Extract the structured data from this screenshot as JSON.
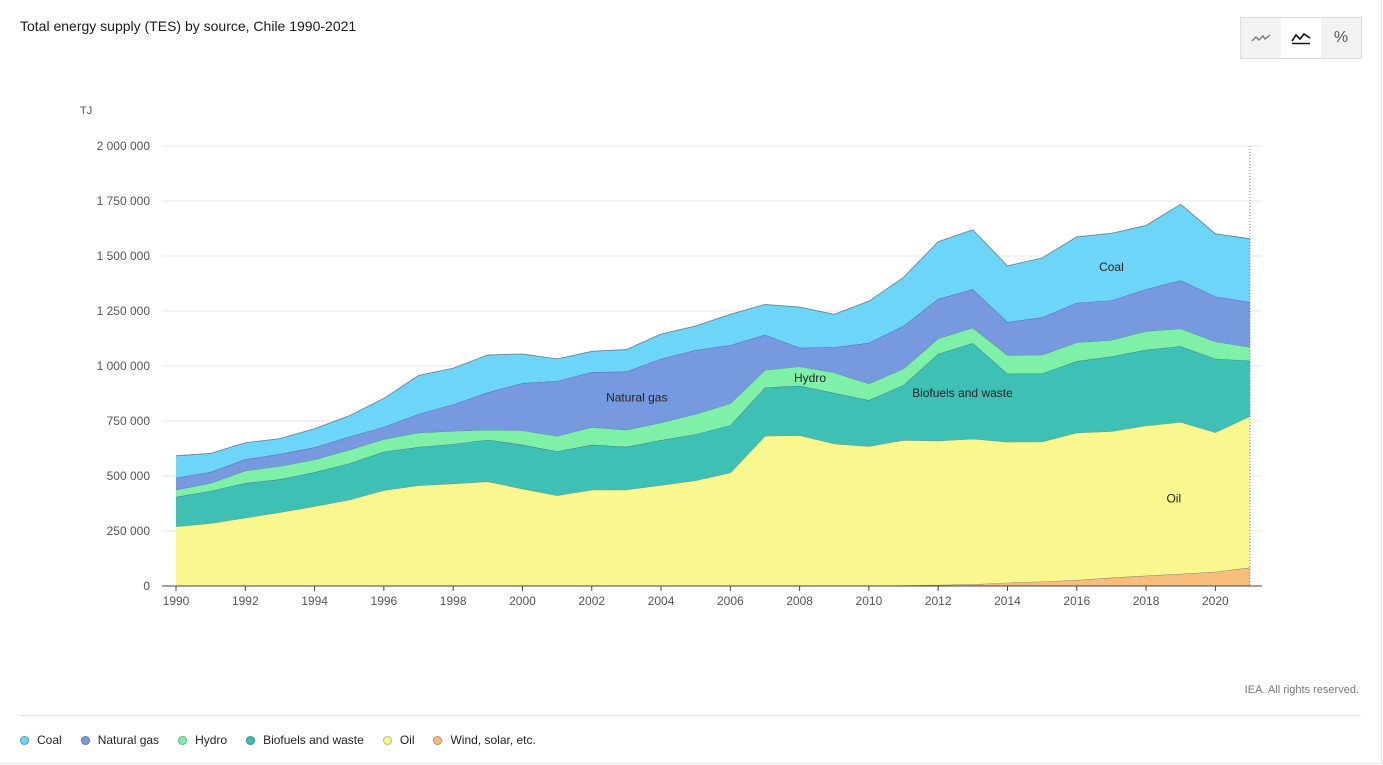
{
  "header": {
    "title": "Total energy supply (TES) by source, Chile 1990-2021"
  },
  "view_toggle": {
    "buttons": [
      {
        "name": "line-chart",
        "icon": "line-chart-icon",
        "active": false
      },
      {
        "name": "area-chart",
        "icon": "area-chart-icon",
        "active": true
      },
      {
        "name": "percent",
        "label": "%",
        "active": false
      }
    ]
  },
  "footer": {
    "copyright": "IEA. All rights reserved."
  },
  "colors": {
    "coal": "#6dd5f7",
    "natural_gas": "#7799e0",
    "hydro": "#7ef0a8",
    "biofuels": "#3fc0b5",
    "oil": "#f9f88f",
    "wind_solar": "#f7bd7d",
    "grid": "#e6e6e6"
  },
  "chart_data": {
    "type": "area",
    "stacked": true,
    "title": "Total energy supply (TES) by source, Chile 1990-2021",
    "ylabel": "TJ",
    "xlabel": "",
    "ylim": [
      0,
      2000000
    ],
    "yticks": [
      0,
      250000,
      500000,
      750000,
      1000000,
      1250000,
      1500000,
      1750000,
      2000000
    ],
    "ytick_labels": [
      "0",
      "250 000",
      "500 000",
      "750 000",
      "1 000 000",
      "1 250 000",
      "1 500 000",
      "1 750 000",
      "2 000 000"
    ],
    "xticks": [
      1990,
      1992,
      1994,
      1996,
      1998,
      2000,
      2002,
      2004,
      2006,
      2008,
      2010,
      2012,
      2014,
      2016,
      2018,
      2020
    ],
    "x": [
      1990,
      1991,
      1992,
      1993,
      1994,
      1995,
      1996,
      1997,
      1998,
      1999,
      2000,
      2001,
      2002,
      2003,
      2004,
      2005,
      2006,
      2007,
      2008,
      2009,
      2010,
      2011,
      2012,
      2013,
      2014,
      2015,
      2016,
      2017,
      2018,
      2019,
      2020,
      2021
    ],
    "series": [
      {
        "name": "Wind, solar, etc.",
        "key": "wind_solar",
        "values": [
          0,
          0,
          0,
          0,
          0,
          0,
          0,
          0,
          0,
          0,
          0,
          0,
          0,
          0,
          0,
          0,
          0,
          0,
          0,
          0,
          2000,
          3000,
          5000,
          8000,
          15000,
          20000,
          27000,
          38000,
          47000,
          55000,
          65000,
          84000
        ]
      },
      {
        "name": "Oil",
        "key": "oil",
        "values": [
          270000,
          285000,
          310000,
          335000,
          362000,
          392000,
          435000,
          457000,
          465000,
          475000,
          442000,
          412000,
          437000,
          438000,
          458000,
          480000,
          515000,
          682000,
          685000,
          647000,
          633000,
          660000,
          655000,
          661000,
          640000,
          636000,
          670000,
          665000,
          682000,
          690000,
          633000,
          688000
        ]
      },
      {
        "name": "Biofuels and waste",
        "key": "biofuels",
        "values": [
          135000,
          147000,
          158000,
          150000,
          155000,
          165000,
          175000,
          175000,
          180000,
          190000,
          200000,
          200000,
          205000,
          195000,
          205000,
          210000,
          215000,
          220000,
          225000,
          230000,
          210000,
          250000,
          395000,
          435000,
          310000,
          310000,
          325000,
          340000,
          345000,
          345000,
          335000,
          252000
        ]
      },
      {
        "name": "Hydro",
        "key": "hydro",
        "values": [
          32000,
          36000,
          56000,
          60000,
          58000,
          62000,
          58000,
          65000,
          60000,
          45000,
          65000,
          70000,
          80000,
          77000,
          80000,
          92000,
          100000,
          80000,
          88000,
          93000,
          75000,
          75000,
          70000,
          70000,
          85000,
          85000,
          85000,
          75000,
          85000,
          80000,
          78000,
          62000
        ]
      },
      {
        "name": "Natural gas",
        "key": "natural_gas",
        "values": [
          55000,
          50000,
          52000,
          55000,
          55000,
          60000,
          55000,
          85000,
          120000,
          170000,
          215000,
          250000,
          250000,
          265000,
          290000,
          290000,
          265000,
          160000,
          85000,
          115000,
          185000,
          195000,
          180000,
          175000,
          150000,
          170000,
          180000,
          180000,
          190000,
          220000,
          205000,
          205000
        ]
      },
      {
        "name": "Coal",
        "key": "coal",
        "values": [
          100000,
          85000,
          75000,
          70000,
          85000,
          95000,
          130000,
          175000,
          165000,
          170000,
          133000,
          100000,
          95000,
          100000,
          112000,
          110000,
          140000,
          138000,
          185000,
          150000,
          190000,
          220000,
          260000,
          270000,
          255000,
          270000,
          300000,
          305000,
          290000,
          345000,
          285000,
          288000
        ]
      }
    ],
    "legend": [
      "Coal",
      "Natural gas",
      "Hydro",
      "Biofuels and waste",
      "Oil",
      "Wind, solar, etc."
    ],
    "area_labels": {
      "coal": "Coal",
      "natural_gas": "Natural gas",
      "hydro": "Hydro",
      "biofuels": "Biofuels and waste",
      "oil": "Oil"
    }
  }
}
